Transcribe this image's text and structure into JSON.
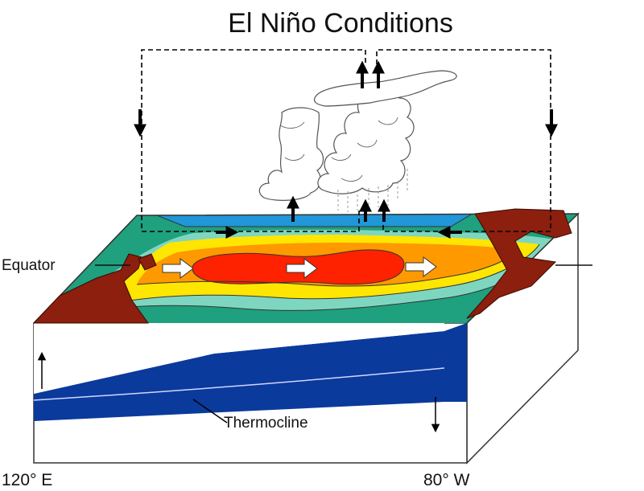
{
  "title": "El Niño Conditions",
  "labels": {
    "equator": "Equator",
    "thermocline": "Thermocline",
    "longitude_west": "120° E",
    "longitude_east": "80° W"
  },
  "colors": {
    "coldest_water": "#2196d8",
    "cool_water": "#1fa07e",
    "mild_water": "#7fd6c0",
    "warm_water": "#ffe600",
    "warmer_water": "#ff9900",
    "warmest_water": "#ff2200",
    "land": "#8c1f0e",
    "deep_layer": "#0a3a9c",
    "surface_layer": "#ffffff"
  },
  "icons": {
    "circulation": "dashed-loop-arrows",
    "surface_flow": "white-block-arrow",
    "convection": "cumulonimbus-cloud"
  }
}
